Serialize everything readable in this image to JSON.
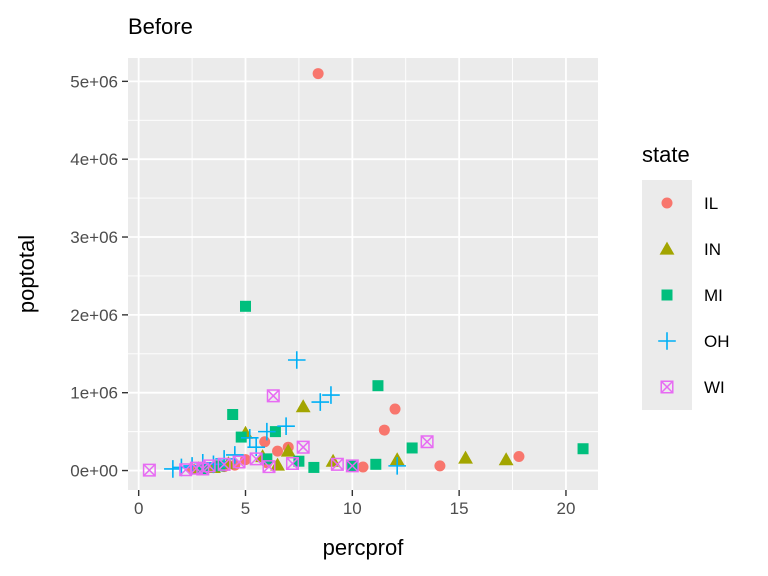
{
  "chart_data": {
    "type": "scatter",
    "title": "Before",
    "xlabel": "percprof",
    "ylabel": "poptotal",
    "xlim": [
      -0.5,
      21.5
    ],
    "ylim": [
      -250000,
      5300000
    ],
    "x_ticks": [
      0,
      5,
      10,
      15,
      20
    ],
    "x_tick_labels": [
      "0",
      "5",
      "10",
      "15",
      "20"
    ],
    "y_ticks": [
      0,
      1000000,
      2000000,
      3000000,
      4000000,
      5000000
    ],
    "y_tick_labels": [
      "0e+00",
      "1e+06",
      "2e+06",
      "3e+06",
      "4e+06",
      "5e+06"
    ],
    "grid": true,
    "legend": {
      "title": "state",
      "position": "right",
      "entries": [
        "IL",
        "IN",
        "MI",
        "OH",
        "WI"
      ]
    },
    "series": [
      {
        "name": "IL",
        "color": "#F8766D",
        "shape": "circle",
        "points": [
          [
            8.4,
            5100000
          ],
          [
            12.0,
            790000
          ],
          [
            11.5,
            520000
          ],
          [
            5.9,
            370000
          ],
          [
            7.0,
            300000
          ],
          [
            14.1,
            60000
          ],
          [
            17.8,
            180000
          ],
          [
            10.5,
            45000
          ],
          [
            6.5,
            250000
          ],
          [
            5.0,
            140000
          ],
          [
            3.0,
            30000
          ],
          [
            4.0,
            50000
          ],
          [
            2.5,
            20000
          ],
          [
            4.5,
            70000
          ],
          [
            6.0,
            100000
          ]
        ]
      },
      {
        "name": "IN",
        "color": "#A3A500",
        "shape": "triangle",
        "points": [
          [
            7.7,
            820000
          ],
          [
            5.0,
            480000
          ],
          [
            15.3,
            160000
          ],
          [
            17.2,
            140000
          ],
          [
            12.1,
            140000
          ],
          [
            7.0,
            250000
          ],
          [
            9.1,
            120000
          ],
          [
            3.5,
            40000
          ],
          [
            4.2,
            90000
          ],
          [
            5.8,
            180000
          ],
          [
            2.8,
            25000
          ],
          [
            6.5,
            70000
          ]
        ]
      },
      {
        "name": "MI",
        "color": "#00BF7D",
        "shape": "square",
        "points": [
          [
            5.0,
            2110000
          ],
          [
            11.2,
            1090000
          ],
          [
            4.4,
            720000
          ],
          [
            6.4,
            500000
          ],
          [
            4.8,
            430000
          ],
          [
            20.8,
            280000
          ],
          [
            12.8,
            290000
          ],
          [
            11.1,
            80000
          ],
          [
            8.2,
            40000
          ],
          [
            10.0,
            60000
          ],
          [
            6.0,
            150000
          ],
          [
            3.8,
            60000
          ],
          [
            3.0,
            25000
          ],
          [
            7.5,
            120000
          ]
        ]
      },
      {
        "name": "OH",
        "color": "#00B0F6",
        "shape": "plus",
        "points": [
          [
            7.4,
            1420000
          ],
          [
            9.0,
            970000
          ],
          [
            8.5,
            880000
          ],
          [
            6.9,
            570000
          ],
          [
            6.0,
            500000
          ],
          [
            5.2,
            420000
          ],
          [
            5.5,
            300000
          ],
          [
            1.6,
            20000
          ],
          [
            2.0,
            40000
          ],
          [
            2.5,
            60000
          ],
          [
            3.0,
            100000
          ],
          [
            4.0,
            150000
          ],
          [
            4.5,
            200000
          ],
          [
            3.5,
            80000
          ],
          [
            12.1,
            60000
          ]
        ]
      },
      {
        "name": "WI",
        "color": "#E76BF3",
        "shape": "boxcross",
        "points": [
          [
            6.3,
            960000
          ],
          [
            13.5,
            370000
          ],
          [
            7.7,
            300000
          ],
          [
            0.5,
            5000
          ],
          [
            2.2,
            10000
          ],
          [
            2.7,
            30000
          ],
          [
            3.3,
            60000
          ],
          [
            4.0,
            80000
          ],
          [
            4.7,
            110000
          ],
          [
            5.5,
            150000
          ],
          [
            6.1,
            50000
          ],
          [
            9.3,
            80000
          ],
          [
            10.0,
            60000
          ],
          [
            7.2,
            90000
          ],
          [
            3.0,
            20000
          ]
        ]
      }
    ]
  }
}
